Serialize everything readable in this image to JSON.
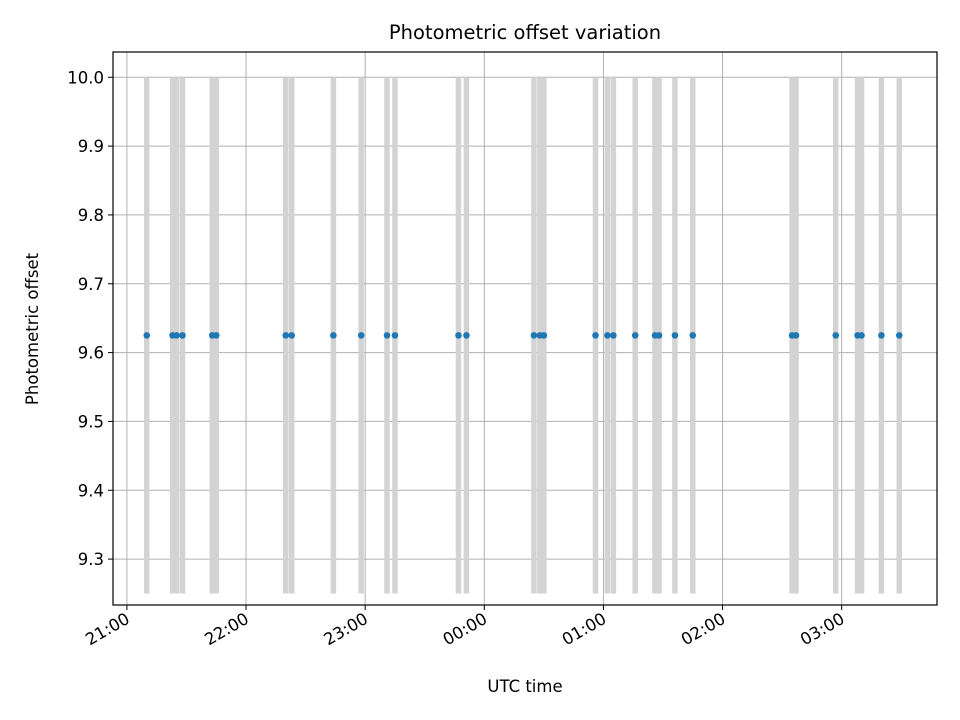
{
  "chart_data": {
    "type": "scatter",
    "title": "Photometric offset variation",
    "xlabel": "UTC time",
    "ylabel": "Photometric offset",
    "ylim": [
      9.2333,
      10.0367
    ],
    "xlim": [
      "20:53",
      "03:48"
    ],
    "x_ticks": [
      {
        "time": "21:00",
        "label": "21:00"
      },
      {
        "time": "22:00",
        "label": "22:00"
      },
      {
        "time": "23:00",
        "label": "23:00"
      },
      {
        "time": "00:00",
        "label": "00:00"
      },
      {
        "time": "01:00",
        "label": "01:00"
      },
      {
        "time": "02:00",
        "label": "02:00"
      },
      {
        "time": "03:00",
        "label": "03:00"
      }
    ],
    "y_ticks": [
      "9.3",
      "9.4",
      "9.5",
      "9.6",
      "9.7",
      "9.8",
      "9.9",
      "10.0"
    ],
    "grid": true,
    "marker_color": "#1f77b4",
    "band_color": "#d3d3d3",
    "band_y_range": [
      9.25,
      10.0
    ],
    "series": [
      {
        "x": [
          "21:10",
          "21:23",
          "21:25",
          "21:28",
          "21:43",
          "21:45",
          "22:20",
          "22:23",
          "22:44",
          "22:58",
          "23:11",
          "23:15",
          "23:47",
          "23:51",
          "00:25",
          "00:28",
          "00:30",
          "00:56",
          "01:02",
          "01:05",
          "01:16",
          "01:26",
          "01:28",
          "01:36",
          "01:45",
          "02:35",
          "02:37",
          "02:57",
          "03:08",
          "03:10",
          "03:20",
          "03:29"
        ],
        "y": [
          9.625,
          9.625,
          9.625,
          9.625,
          9.625,
          9.625,
          9.625,
          9.625,
          9.625,
          9.625,
          9.625,
          9.625,
          9.625,
          9.625,
          9.625,
          9.625,
          9.625,
          9.625,
          9.625,
          9.625,
          9.625,
          9.625,
          9.625,
          9.625,
          9.625,
          9.625,
          9.625,
          9.625,
          9.625,
          9.625,
          9.625,
          9.625
        ]
      }
    ],
    "bands_x": [
      "21:10",
      "21:23",
      "21:25",
      "21:28",
      "21:43",
      "21:45",
      "22:20",
      "22:23",
      "22:44",
      "22:58",
      "23:11",
      "23:15",
      "23:47",
      "23:51",
      "00:25",
      "00:28",
      "00:30",
      "00:56",
      "01:02",
      "01:05",
      "01:16",
      "01:26",
      "01:28",
      "01:36",
      "01:45",
      "02:35",
      "02:37",
      "02:57",
      "03:08",
      "03:10",
      "03:20",
      "03:29"
    ]
  }
}
